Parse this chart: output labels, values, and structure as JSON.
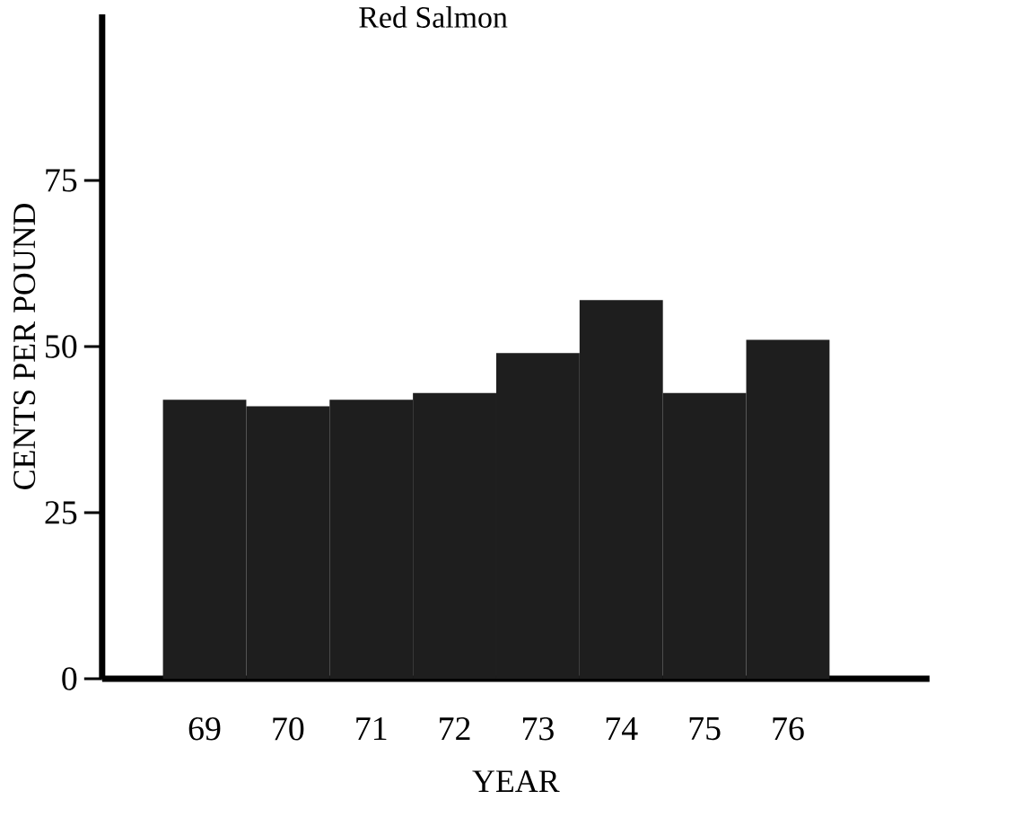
{
  "chart_data": {
    "type": "bar",
    "title": "Red Salmon",
    "xlabel": "YEAR",
    "ylabel": "CENTS PER POUND",
    "categories": [
      "69",
      "70",
      "71",
      "72",
      "73",
      "74",
      "75",
      "76"
    ],
    "values": [
      42,
      41,
      42,
      43,
      49,
      57,
      43,
      51
    ],
    "color": "#1e1e1e",
    "ylim": [
      0,
      100
    ],
    "yticks": [
      0,
      25,
      50,
      75
    ],
    "grid": false
  }
}
